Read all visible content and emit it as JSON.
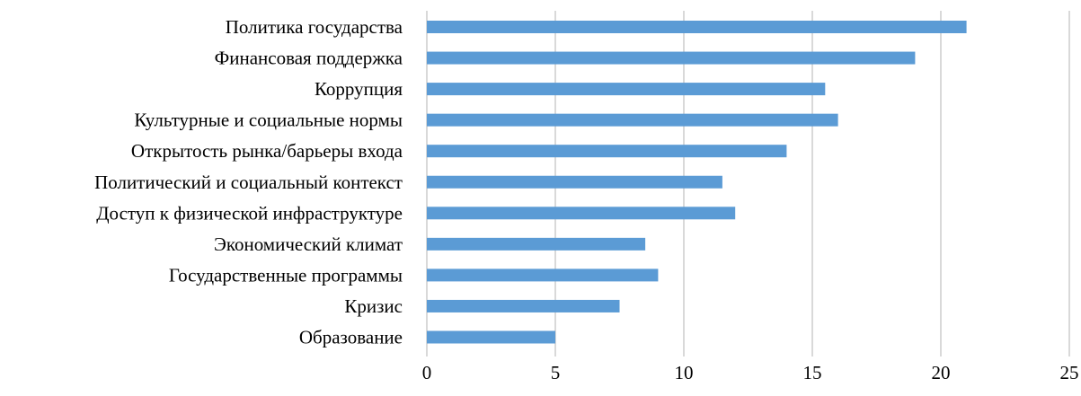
{
  "chart_data": {
    "type": "bar",
    "orientation": "horizontal",
    "categories": [
      "Политика государства",
      "Финансовая поддержка",
      "Коррупция",
      "Культурные и социальные нормы",
      "Открытость рынка/барьеры входа",
      "Политический и социальный контекст",
      "Доступ к физической инфраструктуре",
      "Экономический климат",
      "Государственные программы",
      "Кризис",
      "Образование"
    ],
    "values": [
      21,
      19,
      15.5,
      16,
      14,
      11.5,
      12,
      8.5,
      9,
      7.5,
      5
    ],
    "xlim": [
      0,
      25
    ],
    "xticks": [
      "0",
      "5",
      "10",
      "15",
      "20",
      "25"
    ],
    "title": "",
    "xlabel": "",
    "ylabel": "",
    "grid": "vertical",
    "legend": "none",
    "colors": {
      "bar": "#5b9bd5",
      "grid": "#d9d9d9"
    }
  }
}
